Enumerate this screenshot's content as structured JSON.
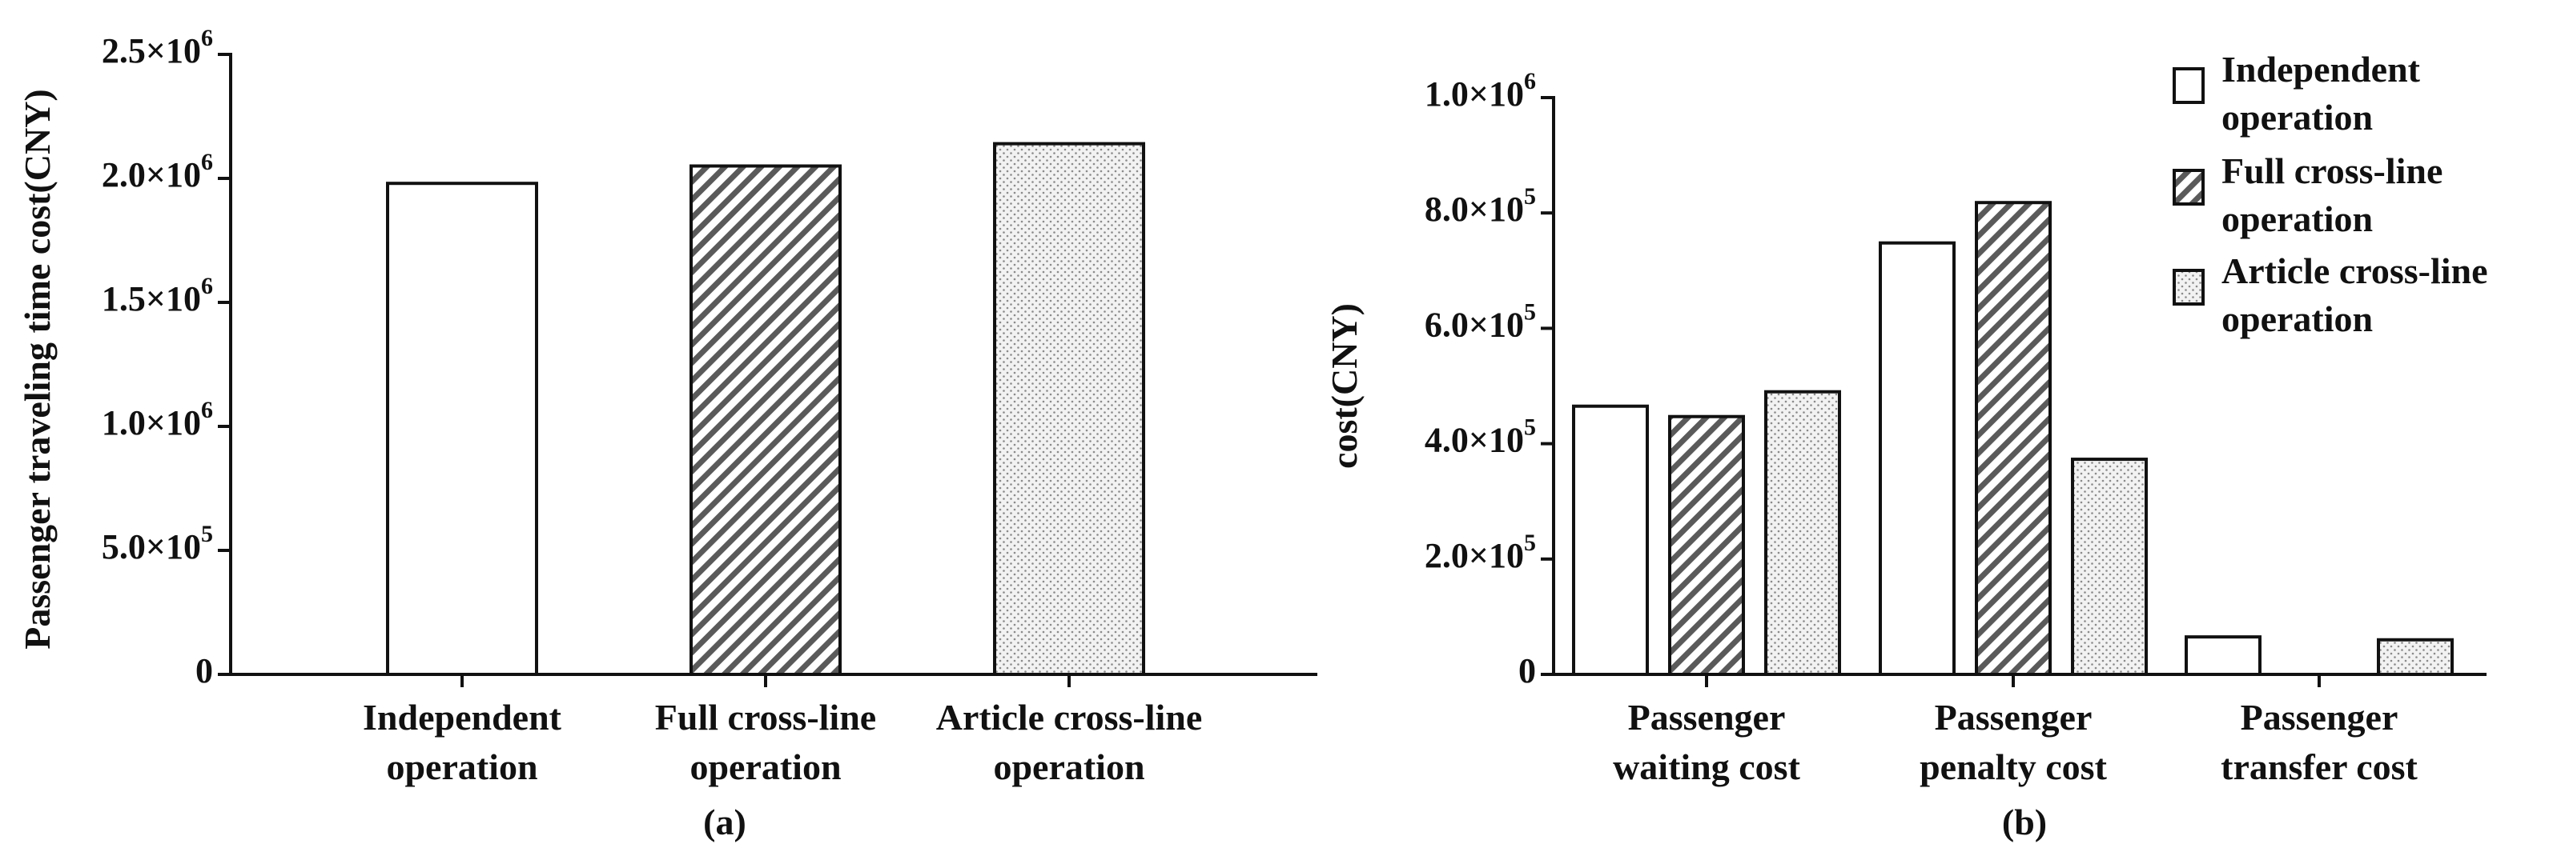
{
  "chart_data": [
    {
      "panel_label": "(a)",
      "type": "bar",
      "ylabel": "Passenger traveling time cost(CNY)",
      "xlabel": "",
      "ylim": [
        0,
        2500000
      ],
      "yticks": [
        {
          "value": 0,
          "label": "0"
        },
        {
          "value": 500000,
          "label": "5.0×10",
          "exp": "5"
        },
        {
          "value": 1000000,
          "label": "1.0×10",
          "exp": "6"
        },
        {
          "value": 1500000,
          "label": "1.5×10",
          "exp": "6"
        },
        {
          "value": 2000000,
          "label": "2.0×10",
          "exp": "6"
        },
        {
          "value": 2500000,
          "label": "2.5×10",
          "exp": "6"
        }
      ],
      "categories": [
        [
          "Independent",
          "operation"
        ],
        [
          "Full cross-line",
          "operation"
        ],
        [
          "Article cross-line",
          "operation"
        ]
      ],
      "values": [
        1980000,
        2050000,
        2140000
      ],
      "patterns": [
        "none",
        "hatch",
        "dots"
      ],
      "grid": false
    },
    {
      "panel_label": "(b)",
      "type": "bar",
      "ylabel": "cost(CNY)",
      "xlabel": "",
      "ylim": [
        0,
        1000000
      ],
      "yticks": [
        {
          "value": 0,
          "label": "0"
        },
        {
          "value": 200000,
          "label": "2.0×10",
          "exp": "5"
        },
        {
          "value": 400000,
          "label": "4.0×10",
          "exp": "5"
        },
        {
          "value": 600000,
          "label": "6.0×10",
          "exp": "5"
        },
        {
          "value": 800000,
          "label": "8.0×10",
          "exp": "5"
        },
        {
          "value": 1000000,
          "label": "1.0×10",
          "exp": "6"
        }
      ],
      "categories": [
        [
          "Passenger",
          "waiting cost"
        ],
        [
          "Passenger",
          "penalty cost"
        ],
        [
          "Passenger",
          "transfer cost"
        ]
      ],
      "series": [
        {
          "name": [
            "Independent",
            "operation"
          ],
          "pattern": "none",
          "values": [
            465000,
            748000,
            65000
          ]
        },
        {
          "name": [
            "Full cross-line",
            "operation"
          ],
          "pattern": "hatch",
          "values": [
            447000,
            818000,
            0
          ]
        },
        {
          "name": [
            "Article cross-line",
            "operation"
          ],
          "pattern": "dots",
          "values": [
            490000,
            373000,
            60000
          ]
        }
      ],
      "legend": "top-right",
      "grid": false
    }
  ]
}
